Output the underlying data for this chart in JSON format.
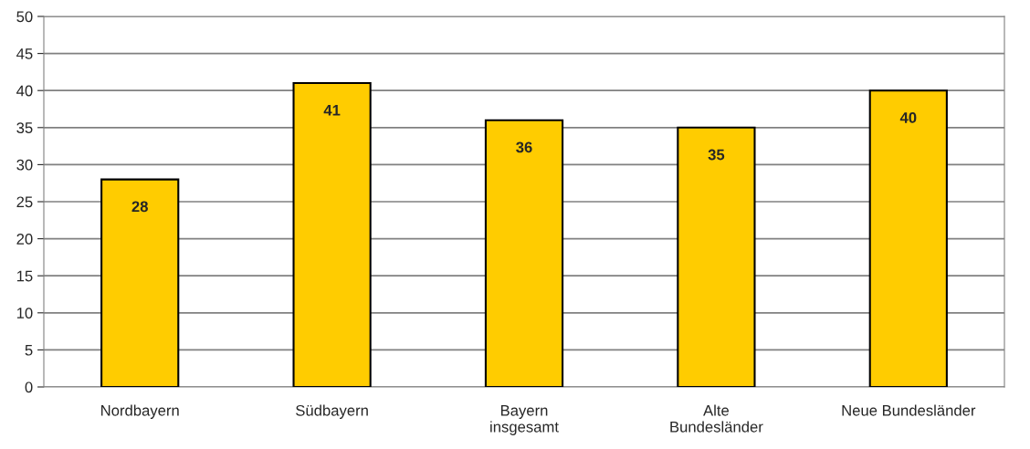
{
  "chart_data": {
    "type": "bar",
    "categories": [
      "Nordbayern",
      "Südbayern",
      "Bayern\ninsgesamt",
      "Alte\nBundesländer",
      "Neue Bundesländer"
    ],
    "values": [
      28,
      41,
      36,
      35,
      40
    ],
    "color": "#ffcc00",
    "ylim": [
      0,
      50
    ],
    "yticks": [
      0,
      5,
      10,
      15,
      20,
      25,
      30,
      35,
      40,
      45,
      50
    ],
    "grid": "y",
    "data_labels": true
  }
}
